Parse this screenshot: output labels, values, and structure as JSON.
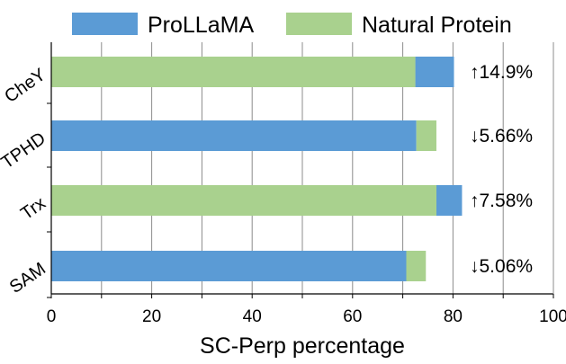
{
  "chart_data": {
    "type": "bar",
    "orientation": "horizontal",
    "stacked": true,
    "title": "",
    "xlabel": "SC-Perp percentage",
    "ylabel": "",
    "xlim": [
      0,
      100
    ],
    "xticks": [
      0,
      20,
      40,
      60,
      80,
      100
    ],
    "grid": "vertical",
    "legend_position": "top",
    "categories": [
      "CheY",
      "TPHD",
      "Trx",
      "SAM"
    ],
    "series": [
      {
        "name": "ProLLaMA",
        "color": "#5b9bd5",
        "segments": [
          [
            72.5,
            80.2
          ],
          [
            0,
            72.7
          ],
          [
            76.7,
            81.8
          ],
          [
            0,
            70.7
          ]
        ]
      },
      {
        "name": "Natural Protein",
        "color": "#a9d18e",
        "segments": [
          [
            0,
            72.5
          ],
          [
            72.7,
            76.7
          ],
          [
            0,
            76.7
          ],
          [
            70.7,
            74.6
          ]
        ]
      }
    ],
    "annotations": [
      "↑14.9%",
      "↓5.66%",
      "↑7.58%",
      "↓5.06%"
    ]
  }
}
